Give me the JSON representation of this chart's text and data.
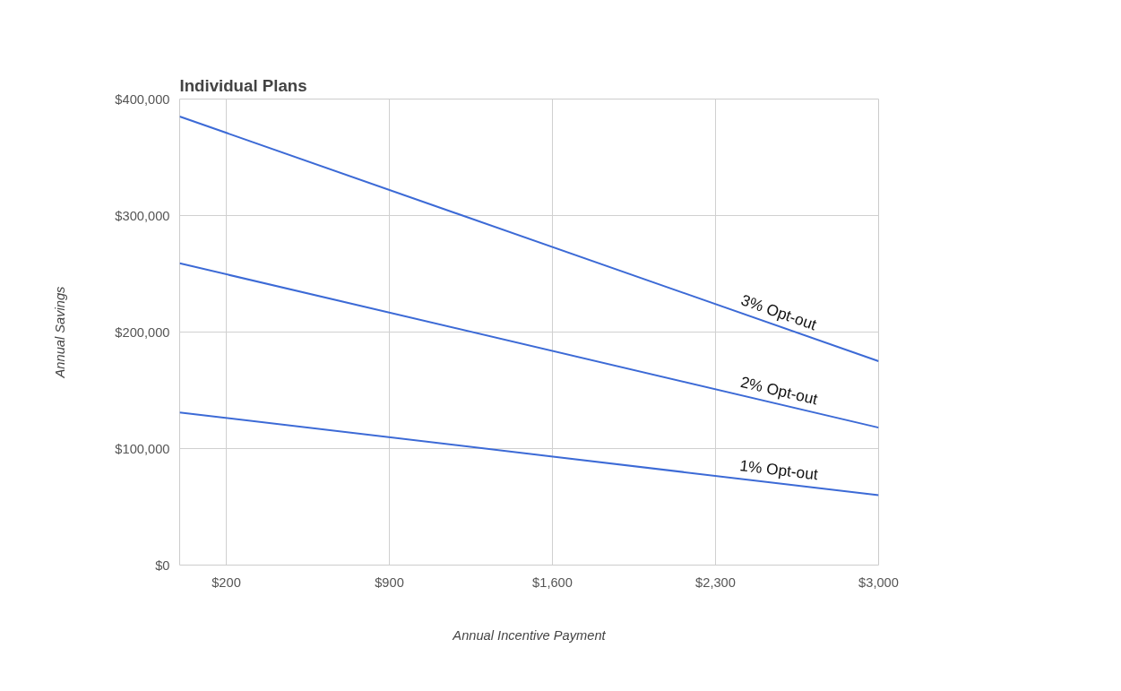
{
  "chart_data": {
    "type": "line",
    "title": "Individual Plans",
    "xlabel": "Annual Incentive Payment",
    "ylabel": "Annual Savings",
    "x": [
      0,
      3000
    ],
    "series": [
      {
        "name": "3% Opt-out",
        "color": "#3c6ad6",
        "values": [
          385000,
          175000
        ]
      },
      {
        "name": "2% Opt-out",
        "color": "#3c6ad6",
        "values": [
          259000,
          118000
        ]
      },
      {
        "name": "1% Opt-out",
        "color": "#3c6ad6",
        "values": [
          131000,
          60000
        ]
      }
    ],
    "xlim": [
      0,
      3000
    ],
    "ylim": [
      0,
      400000
    ],
    "xticks": [
      {
        "value": 200,
        "label": "$200"
      },
      {
        "value": 900,
        "label": "$900"
      },
      {
        "value": 1600,
        "label": "$1,600"
      },
      {
        "value": 2300,
        "label": "$2,300"
      },
      {
        "value": 3000,
        "label": "$3,000"
      }
    ],
    "yticks": [
      {
        "value": 0,
        "label": "$0"
      },
      {
        "value": 100000,
        "label": "$100,000"
      },
      {
        "value": 200000,
        "label": "$200,000"
      },
      {
        "value": 300000,
        "label": "$300,000"
      },
      {
        "value": 400000,
        "label": "$400,000"
      }
    ],
    "grid": true,
    "marker": "none",
    "line_style": "solid"
  }
}
